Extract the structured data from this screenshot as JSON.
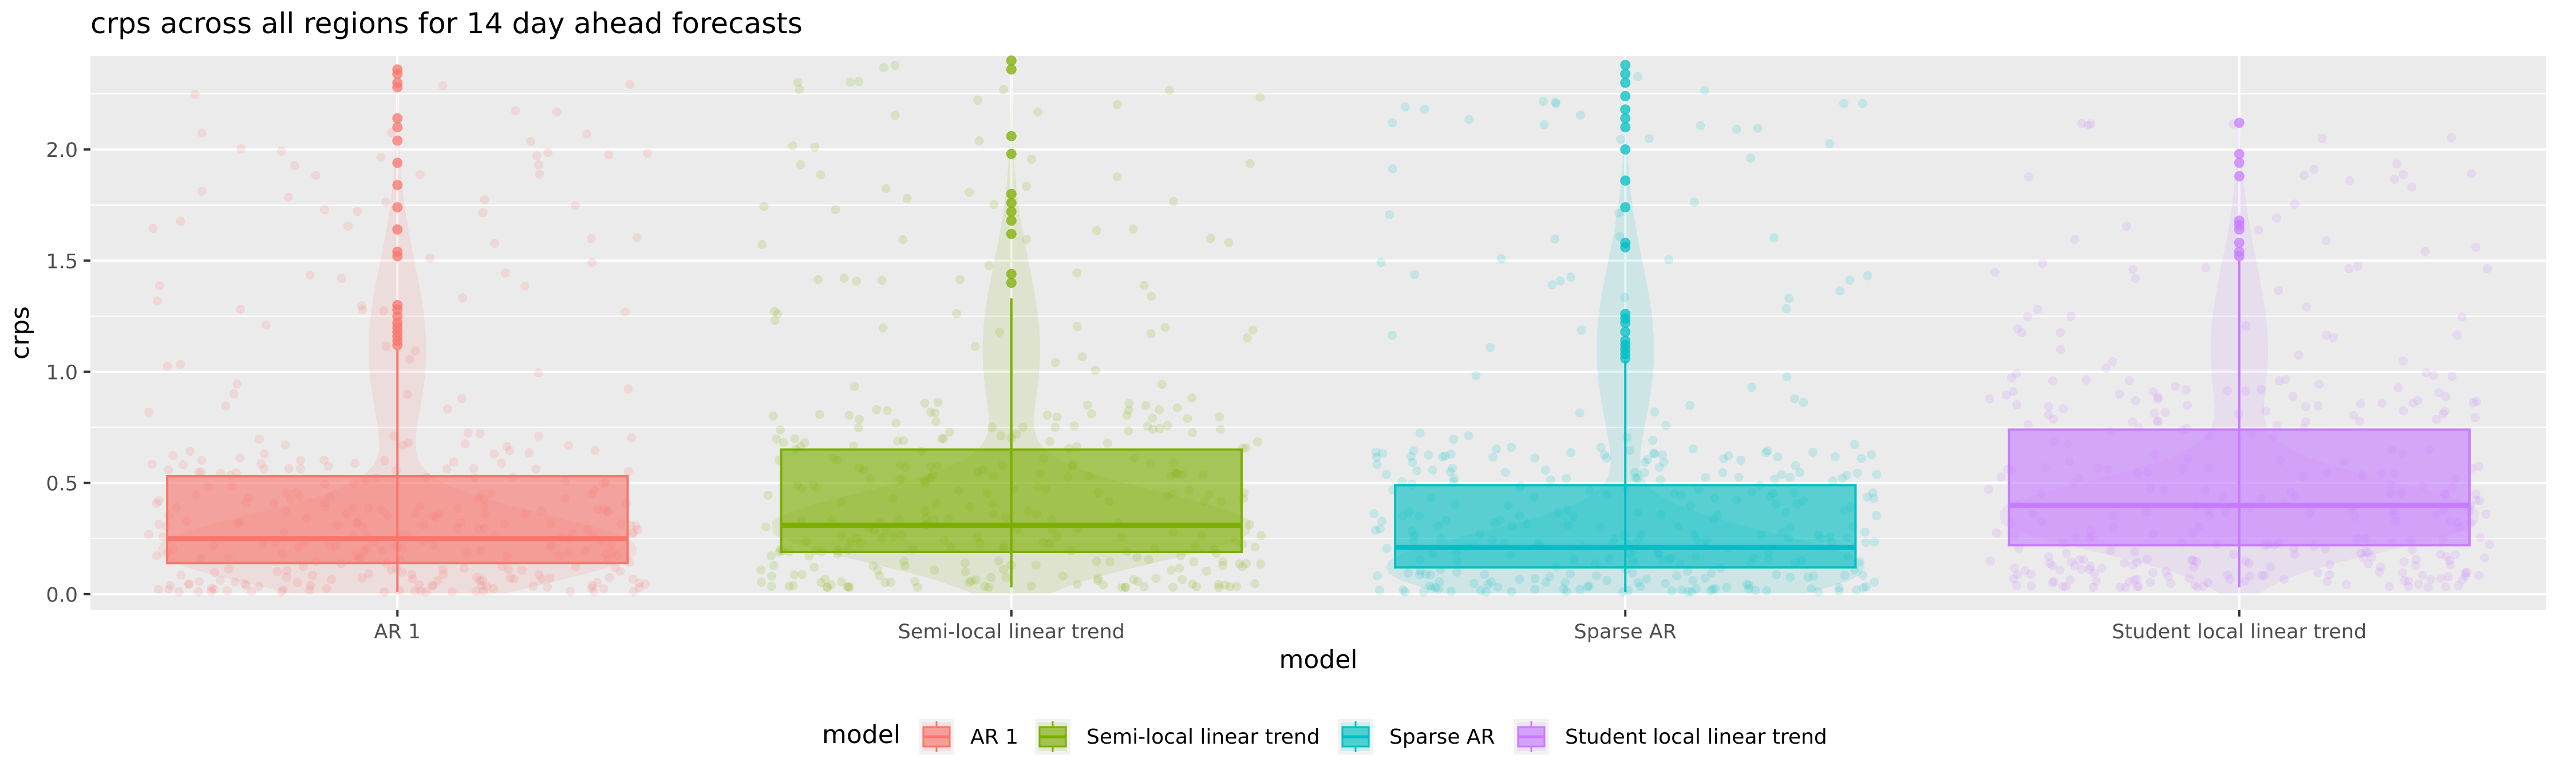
{
  "chart_data": {
    "type": "box",
    "title": "crps across all regions for 14 day ahead forecasts",
    "xlabel": "model",
    "ylabel": "crps",
    "ylim": [
      -0.07,
      2.42
    ],
    "yticks": [
      0.0,
      0.5,
      1.0,
      1.5,
      2.0
    ],
    "ytick_labels": [
      "0.0",
      "0.5",
      "1.0",
      "1.5",
      "2.0"
    ],
    "grid": true,
    "legend": {
      "title": "model",
      "position": "bottom"
    },
    "categories": [
      "AR 1",
      "Semi-local linear trend",
      "Sparse AR",
      "Student local linear trend"
    ],
    "series": [
      {
        "name": "AR 1",
        "color": "#F8766D",
        "box": {
          "q1": 0.14,
          "median": 0.25,
          "q3": 0.53,
          "whisker_low": 0.01,
          "whisker_high": 1.1
        },
        "outliers": [
          1.12,
          1.14,
          1.16,
          1.18,
          1.2,
          1.22,
          1.25,
          1.28,
          1.3,
          1.52,
          1.54,
          1.64,
          1.74,
          1.84,
          1.94,
          2.04,
          2.1,
          2.14,
          2.28,
          2.3,
          2.34,
          2.36
        ],
        "violin_peak": 0.2,
        "violin_top": 2.36
      },
      {
        "name": "Semi-local linear trend",
        "color": "#7CAE00",
        "box": {
          "q1": 0.19,
          "median": 0.31,
          "q3": 0.65,
          "whisker_low": 0.03,
          "whisker_high": 1.33
        },
        "outliers": [
          1.4,
          1.44,
          1.62,
          1.68,
          1.72,
          1.76,
          1.8,
          1.98,
          2.06,
          2.36,
          2.4
        ],
        "violin_peak": 0.3,
        "violin_top": 2.4
      },
      {
        "name": "Sparse AR",
        "color": "#00BFC4",
        "box": {
          "q1": 0.12,
          "median": 0.21,
          "q3": 0.49,
          "whisker_low": 0.01,
          "whisker_high": 1.05
        },
        "outliers": [
          1.06,
          1.08,
          1.1,
          1.12,
          1.14,
          1.18,
          1.22,
          1.24,
          1.26,
          1.56,
          1.58,
          1.74,
          1.86,
          2.0,
          2.1,
          2.14,
          2.18,
          2.24,
          2.3,
          2.34,
          2.38
        ],
        "violin_peak": 0.12,
        "violin_top": 2.38
      },
      {
        "name": "Student local linear trend",
        "color": "#C77CFF",
        "box": {
          "q1": 0.22,
          "median": 0.4,
          "q3": 0.74,
          "whisker_low": 0.03,
          "whisker_high": 1.5
        },
        "outliers": [
          1.52,
          1.54,
          1.58,
          1.64,
          1.66,
          1.68,
          1.88,
          1.94,
          1.98,
          2.12
        ],
        "violin_peak": 0.35,
        "violin_top": 2.12
      }
    ]
  }
}
